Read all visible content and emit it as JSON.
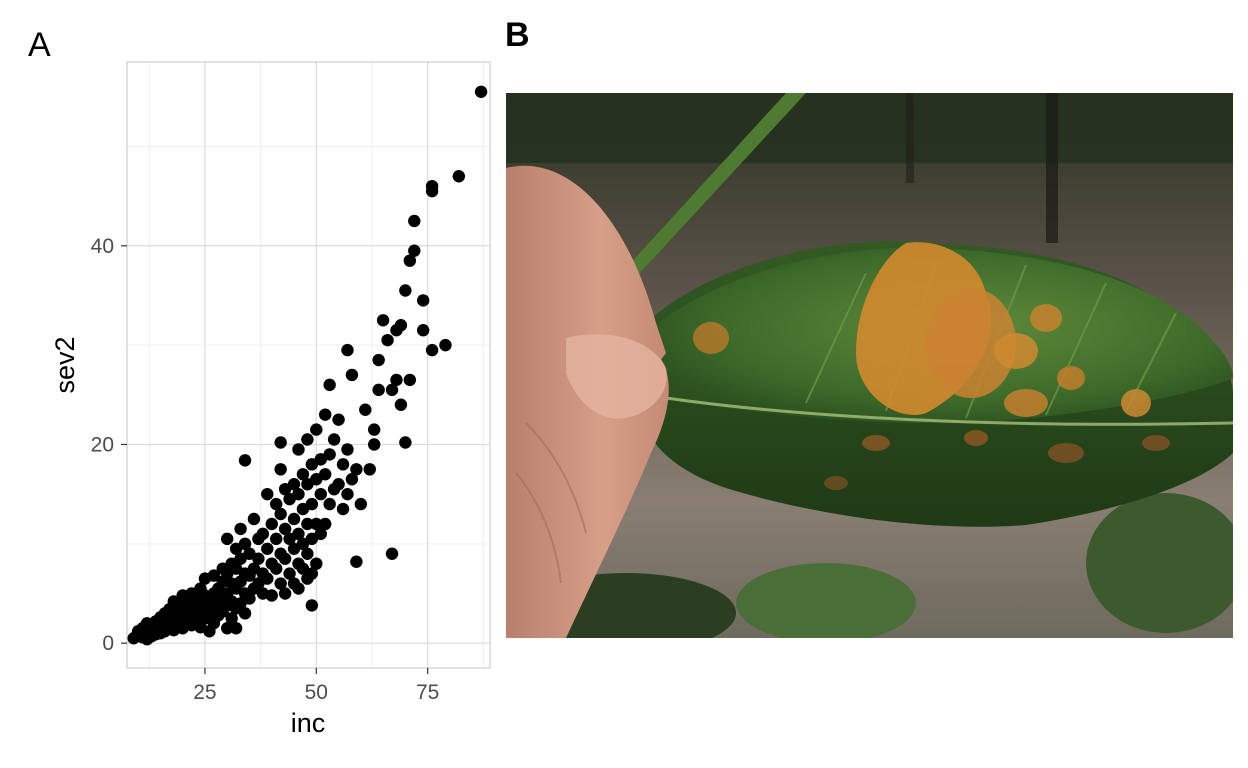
{
  "panel_labels": {
    "a": "A",
    "b": "B"
  },
  "chart_data": {
    "type": "scatter",
    "xlabel": "inc",
    "ylabel": "sev2",
    "xlim": [
      7.5,
      89
    ],
    "ylim": [
      -2.5,
      58.5
    ],
    "xticks": [
      25,
      50,
      75
    ],
    "yticks": [
      0,
      20,
      40
    ],
    "grid": true,
    "point_color": "#000000",
    "points": [
      [
        9,
        0.5
      ],
      [
        10,
        0.8
      ],
      [
        10,
        1.2
      ],
      [
        11,
        0.6
      ],
      [
        11,
        1.5
      ],
      [
        12,
        1.0
      ],
      [
        12,
        0.4
      ],
      [
        12,
        2.0
      ],
      [
        13,
        0.7
      ],
      [
        13,
        1.3
      ],
      [
        13,
        1.8
      ],
      [
        14,
        0.9
      ],
      [
        14,
        1.4
      ],
      [
        14,
        2.2
      ],
      [
        15,
        1.0
      ],
      [
        15,
        1.7
      ],
      [
        15,
        2.6
      ],
      [
        16,
        1.2
      ],
      [
        16,
        2.0
      ],
      [
        16,
        3.0
      ],
      [
        17,
        1.5
      ],
      [
        17,
        2.3
      ],
      [
        17,
        3.4
      ],
      [
        18,
        1.3
      ],
      [
        18,
        2.1
      ],
      [
        18,
        3.1
      ],
      [
        18,
        4.2
      ],
      [
        19,
        1.8
      ],
      [
        19,
        2.7
      ],
      [
        19,
        3.8
      ],
      [
        20,
        1.5
      ],
      [
        20,
        2.5
      ],
      [
        20,
        3.5
      ],
      [
        20,
        4.8
      ],
      [
        21,
        2.0
      ],
      [
        21,
        3.0
      ],
      [
        21,
        4.0
      ],
      [
        22,
        1.8
      ],
      [
        22,
        2.8
      ],
      [
        22,
        3.9
      ],
      [
        22,
        5.0
      ],
      [
        23,
        2.2
      ],
      [
        23,
        3.3
      ],
      [
        23,
        4.5
      ],
      [
        24,
        1.6
      ],
      [
        24,
        2.9
      ],
      [
        24,
        4.0
      ],
      [
        24,
        5.5
      ],
      [
        25,
        2.5
      ],
      [
        25,
        3.6
      ],
      [
        25,
        4.8
      ],
      [
        25,
        6.5
      ],
      [
        26,
        1.2
      ],
      [
        26,
        3.0
      ],
      [
        26,
        4.3
      ],
      [
        27,
        2.0
      ],
      [
        27,
        3.5
      ],
      [
        27,
        5.0
      ],
      [
        27,
        6.8
      ],
      [
        28,
        2.8
      ],
      [
        28,
        4.0
      ],
      [
        28,
        5.5
      ],
      [
        29,
        3.2
      ],
      [
        29,
        4.5
      ],
      [
        29,
        6.2
      ],
      [
        29,
        7.5
      ],
      [
        30,
        1.5
      ],
      [
        30,
        3.8
      ],
      [
        30,
        5.0
      ],
      [
        30,
        7.0
      ],
      [
        30,
        10.5
      ],
      [
        31,
        2.5
      ],
      [
        31,
        4.2
      ],
      [
        31,
        6.0
      ],
      [
        31,
        8.0
      ],
      [
        32,
        1.5
      ],
      [
        32,
        3.5
      ],
      [
        32,
        5.5
      ],
      [
        32,
        7.5
      ],
      [
        32,
        9.5
      ],
      [
        33,
        4.0
      ],
      [
        33,
        6.2
      ],
      [
        33,
        8.5
      ],
      [
        33,
        11.5
      ],
      [
        34,
        3.0
      ],
      [
        34,
        5.0
      ],
      [
        34,
        7.0
      ],
      [
        34,
        10.0
      ],
      [
        34,
        18.4
      ],
      [
        35,
        4.5
      ],
      [
        35,
        6.8
      ],
      [
        35,
        9.0
      ],
      [
        36,
        5.5
      ],
      [
        36,
        7.5
      ],
      [
        36,
        12.5
      ],
      [
        37,
        6.0
      ],
      [
        37,
        8.5
      ],
      [
        37,
        10.5
      ],
      [
        38,
        5.0
      ],
      [
        38,
        7.0
      ],
      [
        38,
        11.0
      ],
      [
        39,
        6.5
      ],
      [
        39,
        9.5
      ],
      [
        39,
        15.0
      ],
      [
        40,
        4.8
      ],
      [
        40,
        8.0
      ],
      [
        40,
        12.0
      ],
      [
        41,
        7.5
      ],
      [
        41,
        10.5
      ],
      [
        41,
        14.0
      ],
      [
        42,
        6.0
      ],
      [
        42,
        9.0
      ],
      [
        42,
        13.0
      ],
      [
        42,
        17.5
      ],
      [
        42,
        20.2
      ],
      [
        43,
        5.0
      ],
      [
        43,
        8.5
      ],
      [
        43,
        11.5
      ],
      [
        43,
        15.5
      ],
      [
        44,
        7.0
      ],
      [
        44,
        10.5
      ],
      [
        44,
        14.5
      ],
      [
        45,
        6.0
      ],
      [
        45,
        9.5
      ],
      [
        45,
        12.5
      ],
      [
        45,
        16.0
      ],
      [
        46,
        5.5
      ],
      [
        46,
        8.0
      ],
      [
        46,
        11.0
      ],
      [
        46,
        15.0
      ],
      [
        46,
        19.5
      ],
      [
        47,
        7.5
      ],
      [
        47,
        10.0
      ],
      [
        47,
        13.5
      ],
      [
        47,
        17.0
      ],
      [
        48,
        6.5
      ],
      [
        48,
        9.0
      ],
      [
        48,
        12.0
      ],
      [
        48,
        16.0
      ],
      [
        48,
        20.5
      ],
      [
        49,
        3.8
      ],
      [
        49,
        7.0
      ],
      [
        49,
        10.5
      ],
      [
        49,
        14.0
      ],
      [
        49,
        18.0
      ],
      [
        50,
        8.0
      ],
      [
        50,
        12.0
      ],
      [
        50,
        16.5
      ],
      [
        50,
        21.5
      ],
      [
        51,
        11.0
      ],
      [
        51,
        15.0
      ],
      [
        51,
        18.5
      ],
      [
        52,
        12.0
      ],
      [
        52,
        17.0
      ],
      [
        52,
        23.0
      ],
      [
        53,
        14.0
      ],
      [
        53,
        19.0
      ],
      [
        53,
        26.0
      ],
      [
        54,
        15.5
      ],
      [
        54,
        20.5
      ],
      [
        55,
        16.0
      ],
      [
        55,
        22.5
      ],
      [
        56,
        13.5
      ],
      [
        56,
        18.0
      ],
      [
        57,
        15.0
      ],
      [
        57,
        19.5
      ],
      [
        57,
        29.5
      ],
      [
        58,
        16.5
      ],
      [
        58,
        27.0
      ],
      [
        59,
        8.2
      ],
      [
        59,
        17.5
      ],
      [
        60,
        14.0
      ],
      [
        61,
        23.5
      ],
      [
        62,
        17.5
      ],
      [
        63,
        20.0
      ],
      [
        63,
        21.5
      ],
      [
        64,
        25.5
      ],
      [
        64,
        28.5
      ],
      [
        65,
        32.5
      ],
      [
        66,
        30.5
      ],
      [
        67,
        9.0
      ],
      [
        67,
        25.5
      ],
      [
        68,
        26.5
      ],
      [
        68,
        31.5
      ],
      [
        69,
        24.0
      ],
      [
        69,
        32.0
      ],
      [
        70,
        20.2
      ],
      [
        70,
        35.5
      ],
      [
        71,
        26.5
      ],
      [
        71,
        38.5
      ],
      [
        72,
        39.5
      ],
      [
        72,
        42.5
      ],
      [
        74,
        31.5
      ],
      [
        74,
        34.5
      ],
      [
        76,
        29.5
      ],
      [
        76,
        45.5
      ],
      [
        76,
        46.0
      ],
      [
        79,
        30.0
      ],
      [
        82,
        47.0
      ],
      [
        87,
        55.5
      ]
    ]
  }
}
